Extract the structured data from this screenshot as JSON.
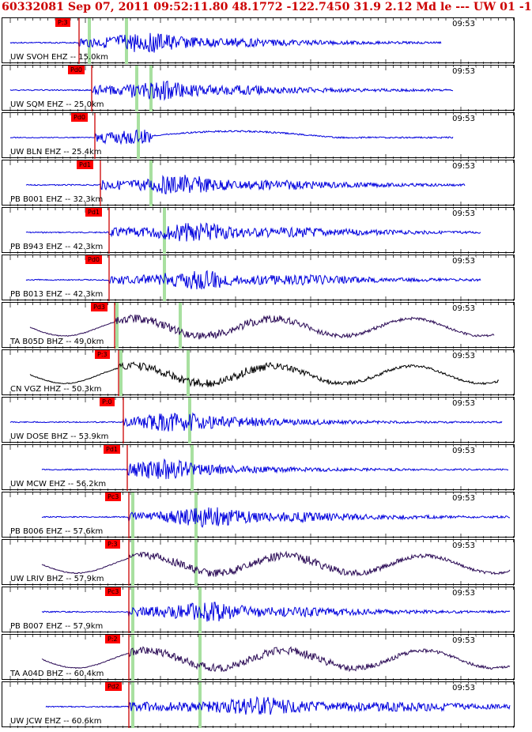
{
  "header": {
    "title": "60332081 Sep 07, 2011 09:52:11.80   48.1772 -122.7450 31.9 2.12 Md le --- UW 01  -1"
  },
  "colors": {
    "title": "#cc0000",
    "trace_blue": "#0000dd",
    "trace_purple": "#2a0a55",
    "trace_black": "#000000",
    "pick_flag": "#ff0000",
    "pick_line": "#cc0000",
    "green_band": "#a8e0a0"
  },
  "traces": [
    {
      "label": "UW SVOH EHZ -- 15.0km",
      "time": "09:53",
      "pick": "P:3",
      "color": "blue",
      "style": "spiky"
    },
    {
      "label": "UW SQM EHZ -- 25.0km",
      "time": "09:53",
      "pick": "Pd0",
      "color": "blue",
      "style": "spiky"
    },
    {
      "label": "UW BLN EHZ -- 25.4km",
      "time": "09:53",
      "pick": "Pd0",
      "color": "blue",
      "style": "drift"
    },
    {
      "label": "PB B001 EHZ -- 32.3km",
      "time": "09:53",
      "pick": "Pd1",
      "color": "blue",
      "style": "spiky"
    },
    {
      "label": "PB B943 EHZ -- 42.3km",
      "time": "09:53",
      "pick": "Pd1",
      "color": "blue",
      "style": "spiky"
    },
    {
      "label": "PB B013 EHZ -- 42.3km",
      "time": "09:53",
      "pick": "Pd0",
      "color": "blue",
      "style": "spiky"
    },
    {
      "label": "TA B05D BHZ -- 49.0km",
      "time": "09:53",
      "pick": "Pd3",
      "color": "purple",
      "style": "wave"
    },
    {
      "label": "CN VGZ HHZ -- 50.3km",
      "time": "09:53",
      "pick": "P:3",
      "color": "black",
      "style": "wave"
    },
    {
      "label": "UW DOSE BHZ -- 53.9km",
      "time": "09:53",
      "pick": "P:0",
      "color": "blue",
      "style": "spiky"
    },
    {
      "label": "UW MCW EHZ -- 56.2km",
      "time": "09:53",
      "pick": "Pd1",
      "color": "blue",
      "style": "spiky"
    },
    {
      "label": "PB B006 EHZ -- 57.6km",
      "time": "09:53",
      "pick": "Pc3",
      "color": "blue",
      "style": "spiky"
    },
    {
      "label": "UW LRIV BHZ -- 57.9km",
      "time": "09:53",
      "pick": "P:3",
      "color": "purple",
      "style": "wave"
    },
    {
      "label": "PB B007 EHZ -- 57.9km",
      "time": "09:53",
      "pick": "Pc3",
      "color": "blue",
      "style": "spiky"
    },
    {
      "label": "TA A04D BHZ -- 60.4km",
      "time": "09:53",
      "pick": "P:2",
      "color": "purple",
      "style": "wave"
    },
    {
      "label": "UW JCW EHZ -- 60.6km",
      "time": "09:53",
      "pick": "Pd2",
      "color": "blue",
      "style": "spiky"
    }
  ]
}
